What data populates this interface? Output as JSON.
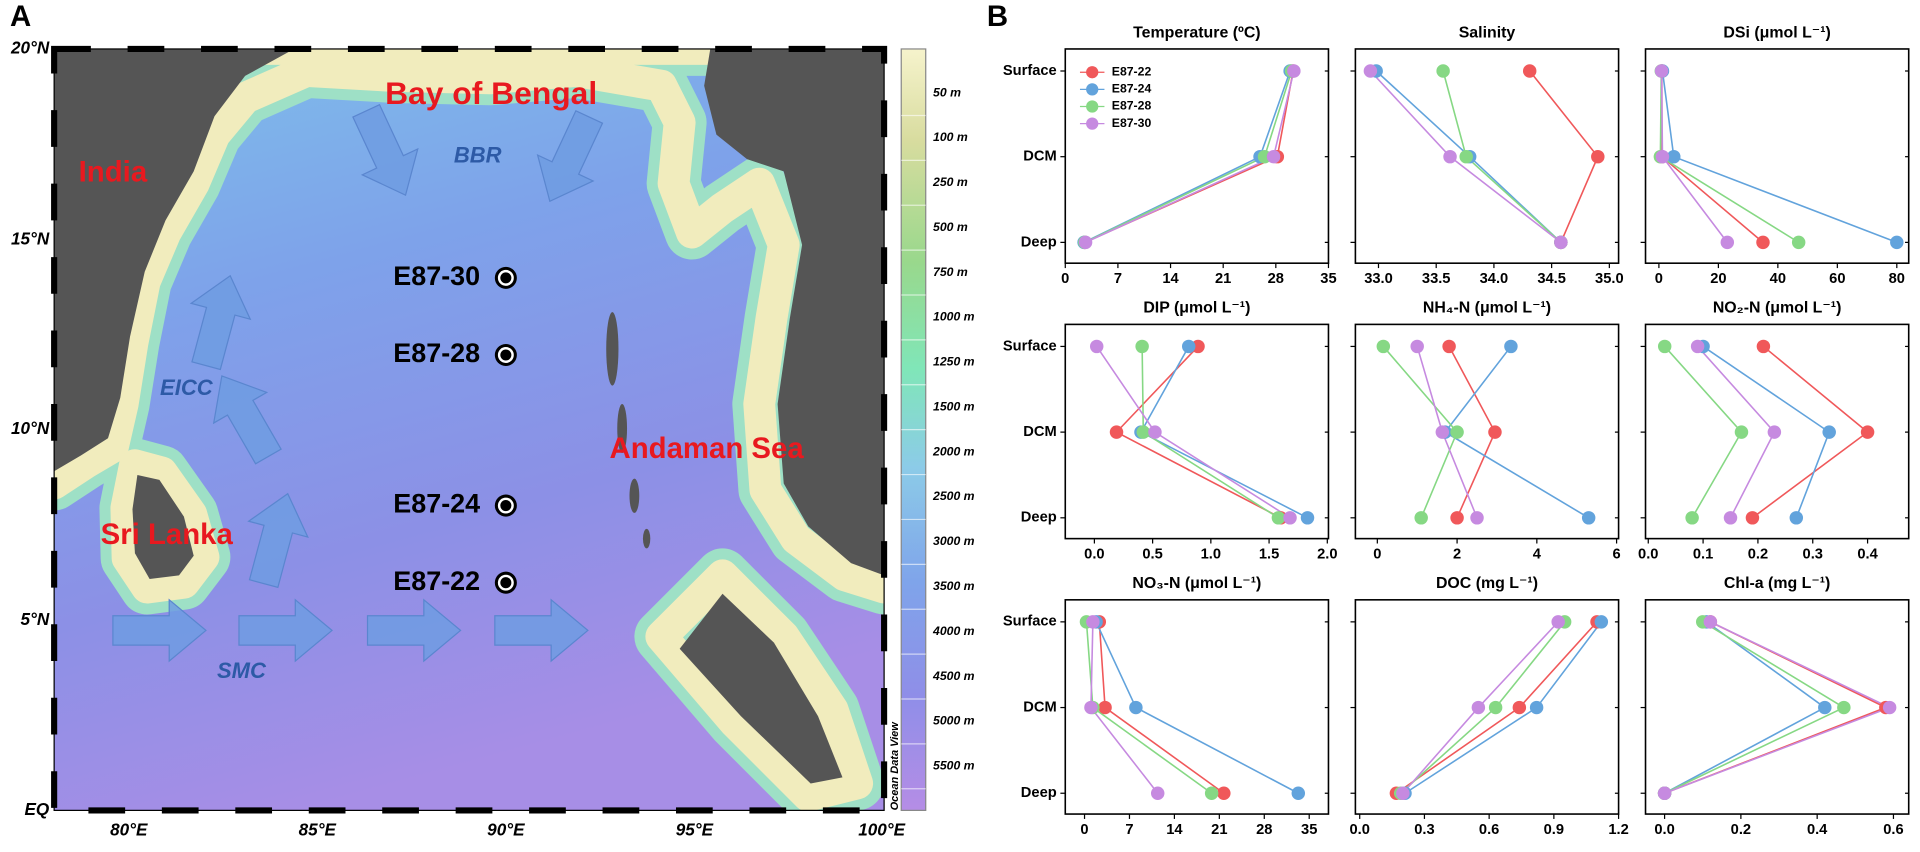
{
  "panels": {
    "a": "A",
    "b": "B"
  },
  "map": {
    "lat_labels": [
      "20°N",
      "15°N",
      "10°N",
      "5°N",
      "EQ"
    ],
    "lon_labels": [
      "80°E",
      "85°E",
      "90°E",
      "95°E",
      "100°E"
    ],
    "regions": [
      "Bay of Bengal",
      "India",
      "Sri Lanka",
      "Andaman Sea"
    ],
    "currents": [
      "BBR",
      "EICC",
      "SMC"
    ],
    "stations": [
      "E87-30",
      "E87-28",
      "E87-24",
      "E87-22"
    ],
    "depth_labels": [
      "50 m",
      "100 m",
      "250 m",
      "500 m",
      "750 m",
      "1000 m",
      "1250 m",
      "1500 m",
      "2000 m",
      "2500 m",
      "3000 m",
      "3500 m",
      "4000 m",
      "4500 m",
      "5000 m",
      "5500 m"
    ],
    "credit": "Ocean Data View"
  },
  "chart_data": [
    {
      "type": "line",
      "title": "Temperature (ºC)",
      "categories": [
        "Surface",
        "DCM",
        "Deep"
      ],
      "series": [
        {
          "name": "E87-22",
          "color": "#f0585a",
          "values": [
            30.3,
            28.2,
            2.6
          ]
        },
        {
          "name": "E87-24",
          "color": "#62a3dc",
          "values": [
            29.9,
            25.9,
            2.5
          ]
        },
        {
          "name": "E87-28",
          "color": "#86d884",
          "values": [
            30.1,
            26.5,
            2.6
          ]
        },
        {
          "name": "E87-30",
          "color": "#c68ae0",
          "values": [
            30.4,
            27.7,
            2.7
          ]
        }
      ],
      "xlim": [
        0,
        35
      ],
      "xticks": [
        0,
        7,
        14,
        21,
        28,
        35
      ]
    },
    {
      "type": "line",
      "title": "Salinity",
      "series": [
        {
          "color": "#f0585a",
          "values": [
            34.31,
            34.9,
            34.58
          ]
        },
        {
          "color": "#62a3dc",
          "values": [
            32.98,
            33.79,
            34.58
          ]
        },
        {
          "color": "#86d884",
          "values": [
            33.56,
            33.76,
            34.58
          ]
        },
        {
          "color": "#c68ae0",
          "values": [
            32.93,
            33.62,
            34.58
          ]
        }
      ],
      "xlim": [
        32.8,
        35.08
      ],
      "xticks": [
        {
          "value": 33,
          "label": "33.0"
        },
        33.5,
        {
          "value": 34,
          "label": "34.0"
        },
        34.5,
        {
          "value": 35,
          "label": "35.0"
        }
      ]
    },
    {
      "type": "line",
      "title": "DSi (μmol L⁻¹)",
      "series": [
        {
          "color": "#f0585a",
          "values": [
            1.0,
            1.0,
            35
          ]
        },
        {
          "color": "#62a3dc",
          "values": [
            1.2,
            5,
            80
          ]
        },
        {
          "color": "#86d884",
          "values": [
            0.8,
            0.5,
            47
          ]
        },
        {
          "color": "#c68ae0",
          "values": [
            0.9,
            1.2,
            23
          ]
        }
      ],
      "xlim": [
        -4.5,
        84
      ],
      "xticks": [
        0,
        20,
        40,
        60,
        80
      ]
    },
    {
      "type": "line",
      "title": "DIP (μmol L⁻¹)",
      "categories": [
        "Surface",
        "DCM",
        "Deep"
      ],
      "series": [
        {
          "color": "#f0585a",
          "values": [
            0.89,
            0.19,
            1.6
          ]
        },
        {
          "color": "#62a3dc",
          "values": [
            0.81,
            0.4,
            1.83
          ]
        },
        {
          "color": "#86d884",
          "values": [
            0.41,
            0.42,
            1.58
          ]
        },
        {
          "color": "#c68ae0",
          "values": [
            0.02,
            0.52,
            1.68
          ]
        }
      ],
      "xlim": [
        -0.25,
        2.01
      ],
      "xticks": [
        {
          "value": 0,
          "label": "0.0"
        },
        0.5,
        {
          "value": 1,
          "label": "1.0"
        },
        1.5,
        {
          "value": 2,
          "label": "2.0"
        }
      ]
    },
    {
      "type": "line",
      "title": "NH₄-N (μmol L⁻¹)",
      "series": [
        {
          "color": "#f0585a",
          "values": [
            1.8,
            2.95,
            2.0
          ]
        },
        {
          "color": "#62a3dc",
          "values": [
            3.35,
            1.7,
            5.3
          ]
        },
        {
          "color": "#86d884",
          "values": [
            0.15,
            2.0,
            1.1
          ]
        },
        {
          "color": "#c68ae0",
          "values": [
            1.0,
            1.63,
            2.5
          ]
        }
      ],
      "xlim": [
        -0.55,
        6.05
      ],
      "xticks": [
        0,
        2,
        4,
        6
      ]
    },
    {
      "type": "line",
      "title": "NO₂-N (μmol L⁻¹)",
      "series": [
        {
          "color": "#f0585a",
          "values": [
            0.21,
            0.4,
            0.19
          ]
        },
        {
          "color": "#62a3dc",
          "values": [
            0.1,
            0.33,
            0.27
          ]
        },
        {
          "color": "#86d884",
          "values": [
            0.03,
            0.17,
            0.08
          ]
        },
        {
          "color": "#c68ae0",
          "values": [
            0.09,
            0.23,
            0.15
          ]
        }
      ],
      "xlim": [
        -0.005,
        0.475
      ],
      "xticks": [
        {
          "value": 0,
          "label": "0.0"
        },
        0.1,
        0.2,
        0.3,
        0.4
      ]
    },
    {
      "type": "line",
      "title": "NO₃-N (μmol L⁻¹)",
      "categories": [
        "Surface",
        "DCM",
        "Deep"
      ],
      "series": [
        {
          "color": "#f0585a",
          "values": [
            2.3,
            3.2,
            21.7
          ]
        },
        {
          "color": "#62a3dc",
          "values": [
            1.8,
            8.0,
            33.3
          ]
        },
        {
          "color": "#86d884",
          "values": [
            0.3,
            1.3,
            19.8
          ]
        },
        {
          "color": "#c68ae0",
          "values": [
            1.3,
            1.0,
            11.4
          ]
        }
      ],
      "xlim": [
        -3,
        38
      ],
      "xticks": [
        0,
        7,
        14,
        21,
        28,
        35
      ]
    },
    {
      "type": "line",
      "title": "DOC (mg L⁻¹)",
      "series": [
        {
          "color": "#f0585a",
          "values": [
            1.1,
            0.74,
            0.17
          ]
        },
        {
          "color": "#62a3dc",
          "values": [
            1.12,
            0.82,
            0.21
          ]
        },
        {
          "color": "#86d884",
          "values": [
            0.95,
            0.63,
            0.19
          ]
        },
        {
          "color": "#c68ae0",
          "values": [
            0.92,
            0.55,
            0.2
          ]
        }
      ],
      "xlim": [
        -0.02,
        1.2
      ],
      "xticks": [
        {
          "value": 0,
          "label": "0.0"
        },
        0.3,
        0.6,
        0.9,
        1.2
      ]
    },
    {
      "type": "line",
      "title": "Chl-a (mg L⁻¹)",
      "series": [
        {
          "color": "#f0585a",
          "values": [
            0.12,
            0.58,
            0.0
          ]
        },
        {
          "color": "#62a3dc",
          "values": [
            0.11,
            0.42,
            0.0
          ]
        },
        {
          "color": "#86d884",
          "values": [
            0.1,
            0.47,
            0.0
          ]
        },
        {
          "color": "#c68ae0",
          "values": [
            0.12,
            0.59,
            0.0
          ]
        }
      ],
      "xlim": [
        -0.05,
        0.64
      ],
      "xticks": [
        {
          "value": 0,
          "label": "0.0"
        },
        0.2,
        0.4,
        0.6
      ]
    }
  ]
}
